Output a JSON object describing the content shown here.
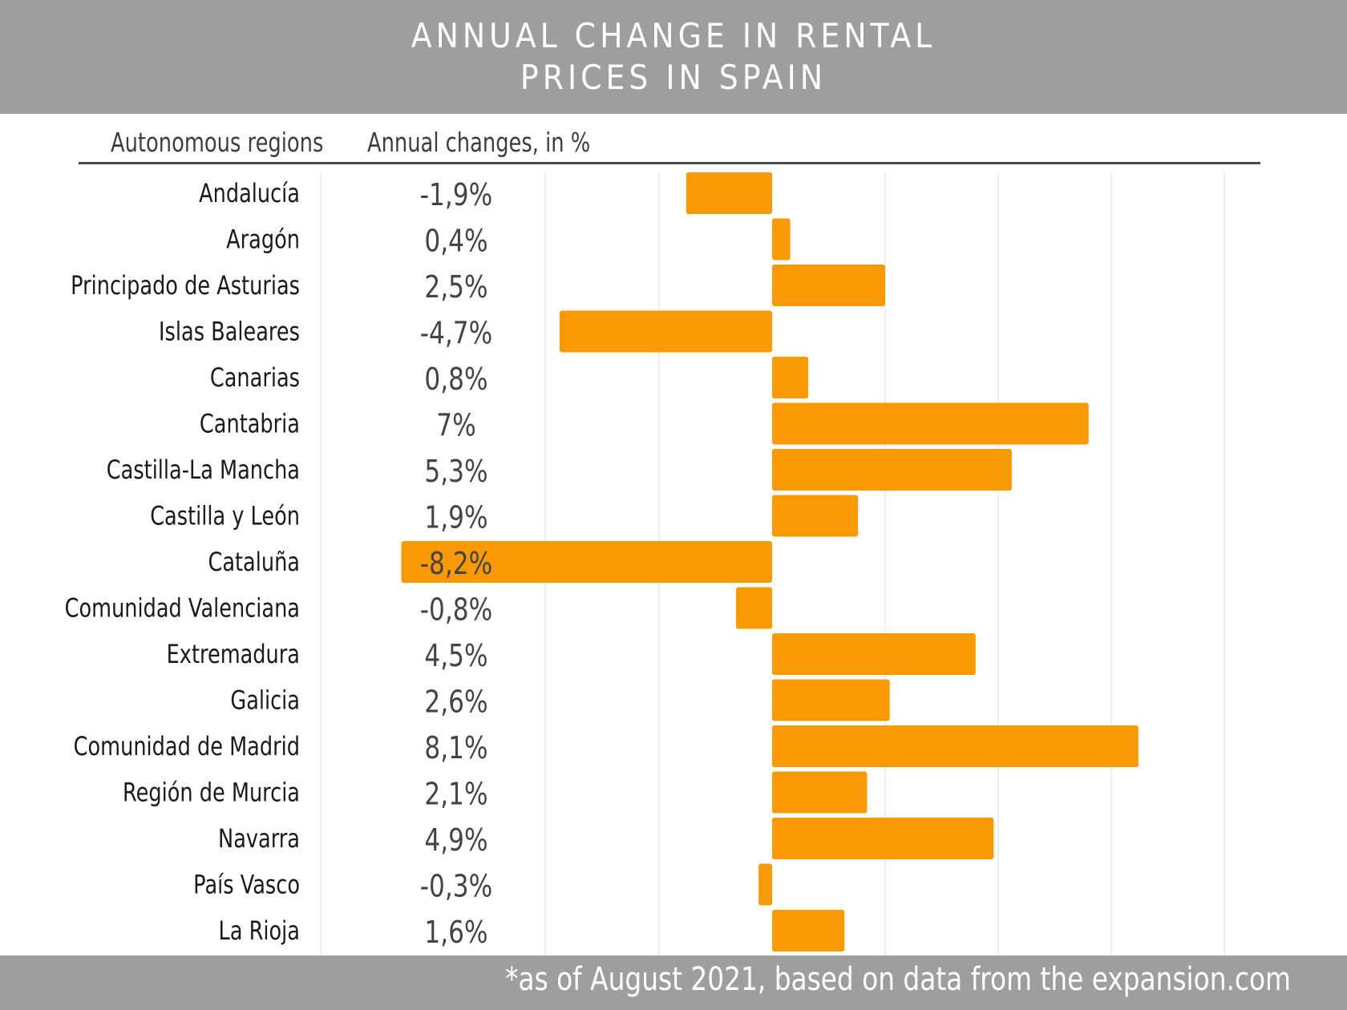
{
  "header": {
    "title_line1": "ANNUAL CHANGE IN RENTAL",
    "title_line2": "PRICES IN SPAIN"
  },
  "columns": {
    "regions_header": "Autonomous regions",
    "changes_header": "Annual changes, in %"
  },
  "footer": {
    "note": "*as of August 2021, based on data from the expansion.com"
  },
  "chart_data": {
    "type": "bar",
    "orientation": "horizontal",
    "title": "ANNUAL CHANGE IN RENTAL PRICES IN SPAIN",
    "xlabel": "Annual changes, in %",
    "ylabel": "Autonomous regions",
    "grid": true,
    "bar_color": "#f99a05",
    "categories": [
      "Andalucía",
      "Aragón",
      "Principado de Asturias",
      "Islas Baleares",
      "Canarias",
      "Cantabria",
      "Castilla-La Mancha",
      "Castilla y León",
      "Cataluña",
      "Comunidad Valenciana",
      "Extremadura",
      "Galicia",
      "Comunidad de Madrid",
      "Región de Murcia",
      "Navarra",
      "País Vasco",
      "La Rioja"
    ],
    "values": [
      -1.9,
      0.4,
      2.5,
      -4.7,
      0.8,
      7,
      5.3,
      1.9,
      -8.2,
      -0.8,
      4.5,
      2.6,
      8.1,
      2.1,
      4.9,
      -0.3,
      1.6
    ],
    "value_labels": [
      "-1,9%",
      "0,4%",
      "2,5%",
      "-4,7%",
      "0,8%",
      "7%",
      "5,3%",
      "1,9%",
      "-8,2%",
      "-0,8%",
      "4,5%",
      "2,6%",
      "8,1%",
      "2,1%",
      "4,9%",
      "-0,3%",
      "1,6%"
    ]
  }
}
